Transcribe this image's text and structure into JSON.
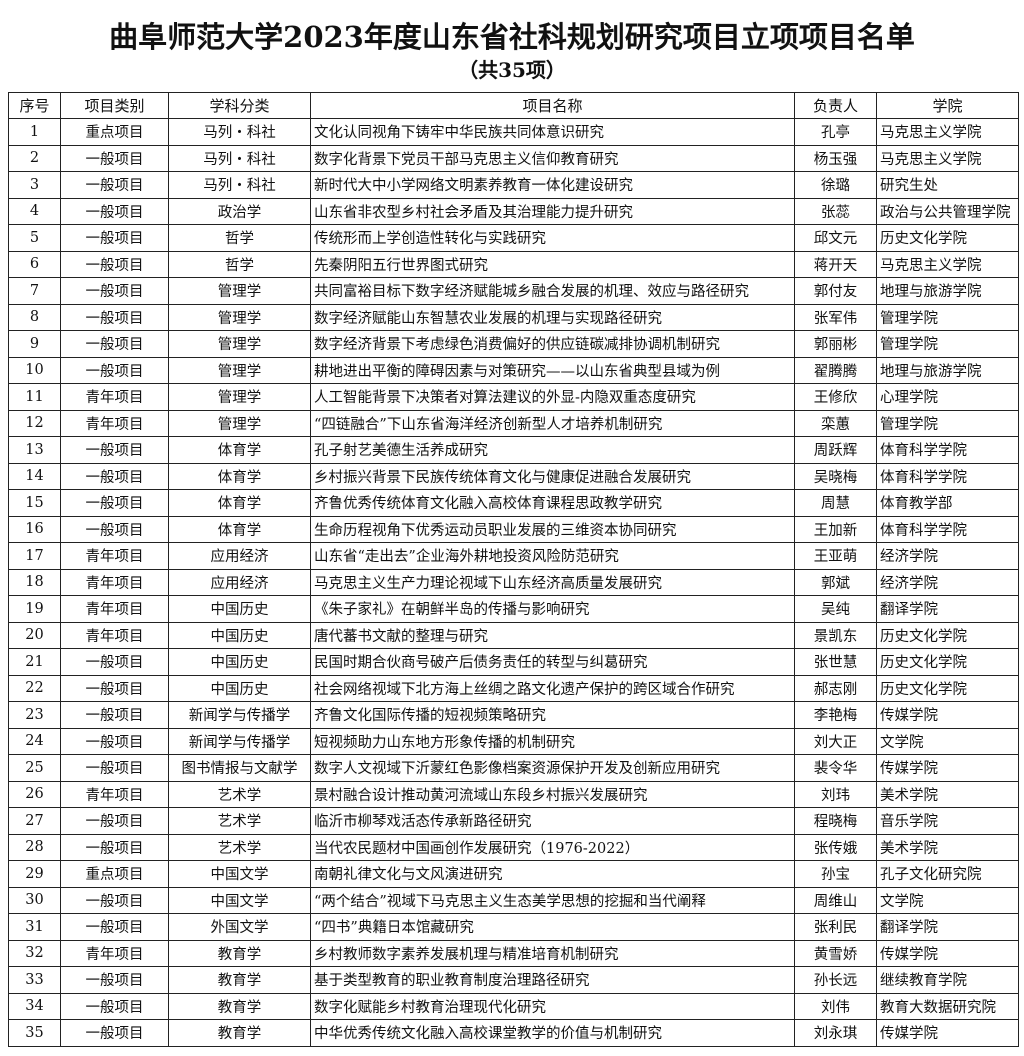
{
  "title": "曲阜师范大学2023年度山东省社科规划研究项目立项项目名单",
  "subtitle": "（共35项）",
  "columns": [
    "序号",
    "项目类别",
    "学科分类",
    "项目名称",
    "负责人",
    "学院"
  ],
  "rows": [
    [
      "1",
      "重点项目",
      "马列・科社",
      "文化认同视角下铸牢中华民族共同体意识研究",
      "孔亭",
      "马克思主义学院"
    ],
    [
      "2",
      "一般项目",
      "马列・科社",
      "数字化背景下党员干部马克思主义信仰教育研究",
      "杨玉强",
      "马克思主义学院"
    ],
    [
      "3",
      "一般项目",
      "马列・科社",
      "新时代大中小学网络文明素养教育一体化建设研究",
      "徐璐",
      "研究生处"
    ],
    [
      "4",
      "一般项目",
      "政治学",
      "山东省非农型乡村社会矛盾及其治理能力提升研究",
      "张蕊",
      "政治与公共管理学院"
    ],
    [
      "5",
      "一般项目",
      "哲学",
      "传统形而上学创造性转化与实践研究",
      "邱文元",
      "历史文化学院"
    ],
    [
      "6",
      "一般项目",
      "哲学",
      "先秦阴阳五行世界图式研究",
      "蒋开天",
      "马克思主义学院"
    ],
    [
      "7",
      "一般项目",
      "管理学",
      "共同富裕目标下数字经济赋能城乡融合发展的机理、效应与路径研究",
      "郭付友",
      "地理与旅游学院"
    ],
    [
      "8",
      "一般项目",
      "管理学",
      "数字经济赋能山东智慧农业发展的机理与实现路径研究",
      "张军伟",
      "管理学院"
    ],
    [
      "9",
      "一般项目",
      "管理学",
      "数字经济背景下考虑绿色消费偏好的供应链碳减排协调机制研究",
      "郭丽彬",
      "管理学院"
    ],
    [
      "10",
      "一般项目",
      "管理学",
      "耕地进出平衡的障碍因素与对策研究——以山东省典型县域为例",
      "翟腾腾",
      "地理与旅游学院"
    ],
    [
      "11",
      "青年项目",
      "管理学",
      "人工智能背景下决策者对算法建议的外显-内隐双重态度研究",
      "王修欣",
      "心理学院"
    ],
    [
      "12",
      "青年项目",
      "管理学",
      "“四链融合”下山东省海洋经济创新型人才培养机制研究",
      "栾蕙",
      "管理学院"
    ],
    [
      "13",
      "一般项目",
      "体育学",
      "孔子射艺美德生活养成研究",
      "周跃辉",
      "体育科学学院"
    ],
    [
      "14",
      "一般项目",
      "体育学",
      "乡村振兴背景下民族传统体育文化与健康促进融合发展研究",
      "吴晓梅",
      "体育科学学院"
    ],
    [
      "15",
      "一般项目",
      "体育学",
      "齐鲁优秀传统体育文化融入高校体育课程思政教学研究",
      "周慧",
      "体育教学部"
    ],
    [
      "16",
      "一般项目",
      "体育学",
      "生命历程视角下优秀运动员职业发展的三维资本协同研究",
      "王加新",
      "体育科学学院"
    ],
    [
      "17",
      "青年项目",
      "应用经济",
      "山东省“走出去”企业海外耕地投资风险防范研究",
      "王亚萌",
      "经济学院"
    ],
    [
      "18",
      "青年项目",
      "应用经济",
      "马克思主义生产力理论视域下山东经济高质量发展研究",
      "郭斌",
      "经济学院"
    ],
    [
      "19",
      "青年项目",
      "中国历史",
      "《朱子家礼》在朝鲜半岛的传播与影响研究",
      "吴纯",
      "翻译学院"
    ],
    [
      "20",
      "青年项目",
      "中国历史",
      "唐代蕃书文献的整理与研究",
      "景凯东",
      "历史文化学院"
    ],
    [
      "21",
      "一般项目",
      "中国历史",
      "民国时期合伙商号破产后债务责任的转型与纠葛研究",
      "张世慧",
      "历史文化学院"
    ],
    [
      "22",
      "一般项目",
      "中国历史",
      "社会网络视域下北方海上丝绸之路文化遗产保护的跨区域合作研究",
      "郝志刚",
      "历史文化学院"
    ],
    [
      "23",
      "一般项目",
      "新闻学与传播学",
      "齐鲁文化国际传播的短视频策略研究",
      "李艳梅",
      "传媒学院"
    ],
    [
      "24",
      "一般项目",
      "新闻学与传播学",
      "短视频助力山东地方形象传播的机制研究",
      "刘大正",
      "文学院"
    ],
    [
      "25",
      "一般项目",
      "图书情报与文献学",
      "数字人文视域下沂蒙红色影像档案资源保护开发及创新应用研究",
      "裴令华",
      "传媒学院"
    ],
    [
      "26",
      "青年项目",
      "艺术学",
      "景村融合设计推动黄河流域山东段乡村振兴发展研究",
      "刘玮",
      "美术学院"
    ],
    [
      "27",
      "一般项目",
      "艺术学",
      "临沂市柳琴戏活态传承新路径研究",
      "程晓梅",
      "音乐学院"
    ],
    [
      "28",
      "一般项目",
      "艺术学",
      "当代农民题材中国画创作发展研究（1976-2022）",
      "张传娥",
      "美术学院"
    ],
    [
      "29",
      "重点项目",
      "中国文学",
      "南朝礼律文化与文风演进研究",
      "孙宝",
      "孔子文化研究院"
    ],
    [
      "30",
      "一般项目",
      "中国文学",
      "“两个结合”视域下马克思主义生态美学思想的挖掘和当代阐释",
      "周维山",
      "文学院"
    ],
    [
      "31",
      "一般项目",
      "外国文学",
      "“四书”典籍日本馆藏研究",
      "张利民",
      "翻译学院"
    ],
    [
      "32",
      "青年项目",
      "教育学",
      "乡村教师数字素养发展机理与精准培育机制研究",
      "黄雪娇",
      "传媒学院"
    ],
    [
      "33",
      "一般项目",
      "教育学",
      "基于类型教育的职业教育制度治理路径研究",
      "孙长远",
      "继续教育学院"
    ],
    [
      "34",
      "一般项目",
      "教育学",
      "数字化赋能乡村教育治理现代化研究",
      "刘伟",
      "教育大数据研究院"
    ],
    [
      "35",
      "一般项目",
      "教育学",
      "中华优秀传统文化融入高校课堂教学的价值与机制研究",
      "刘永琪",
      "传媒学院"
    ]
  ]
}
